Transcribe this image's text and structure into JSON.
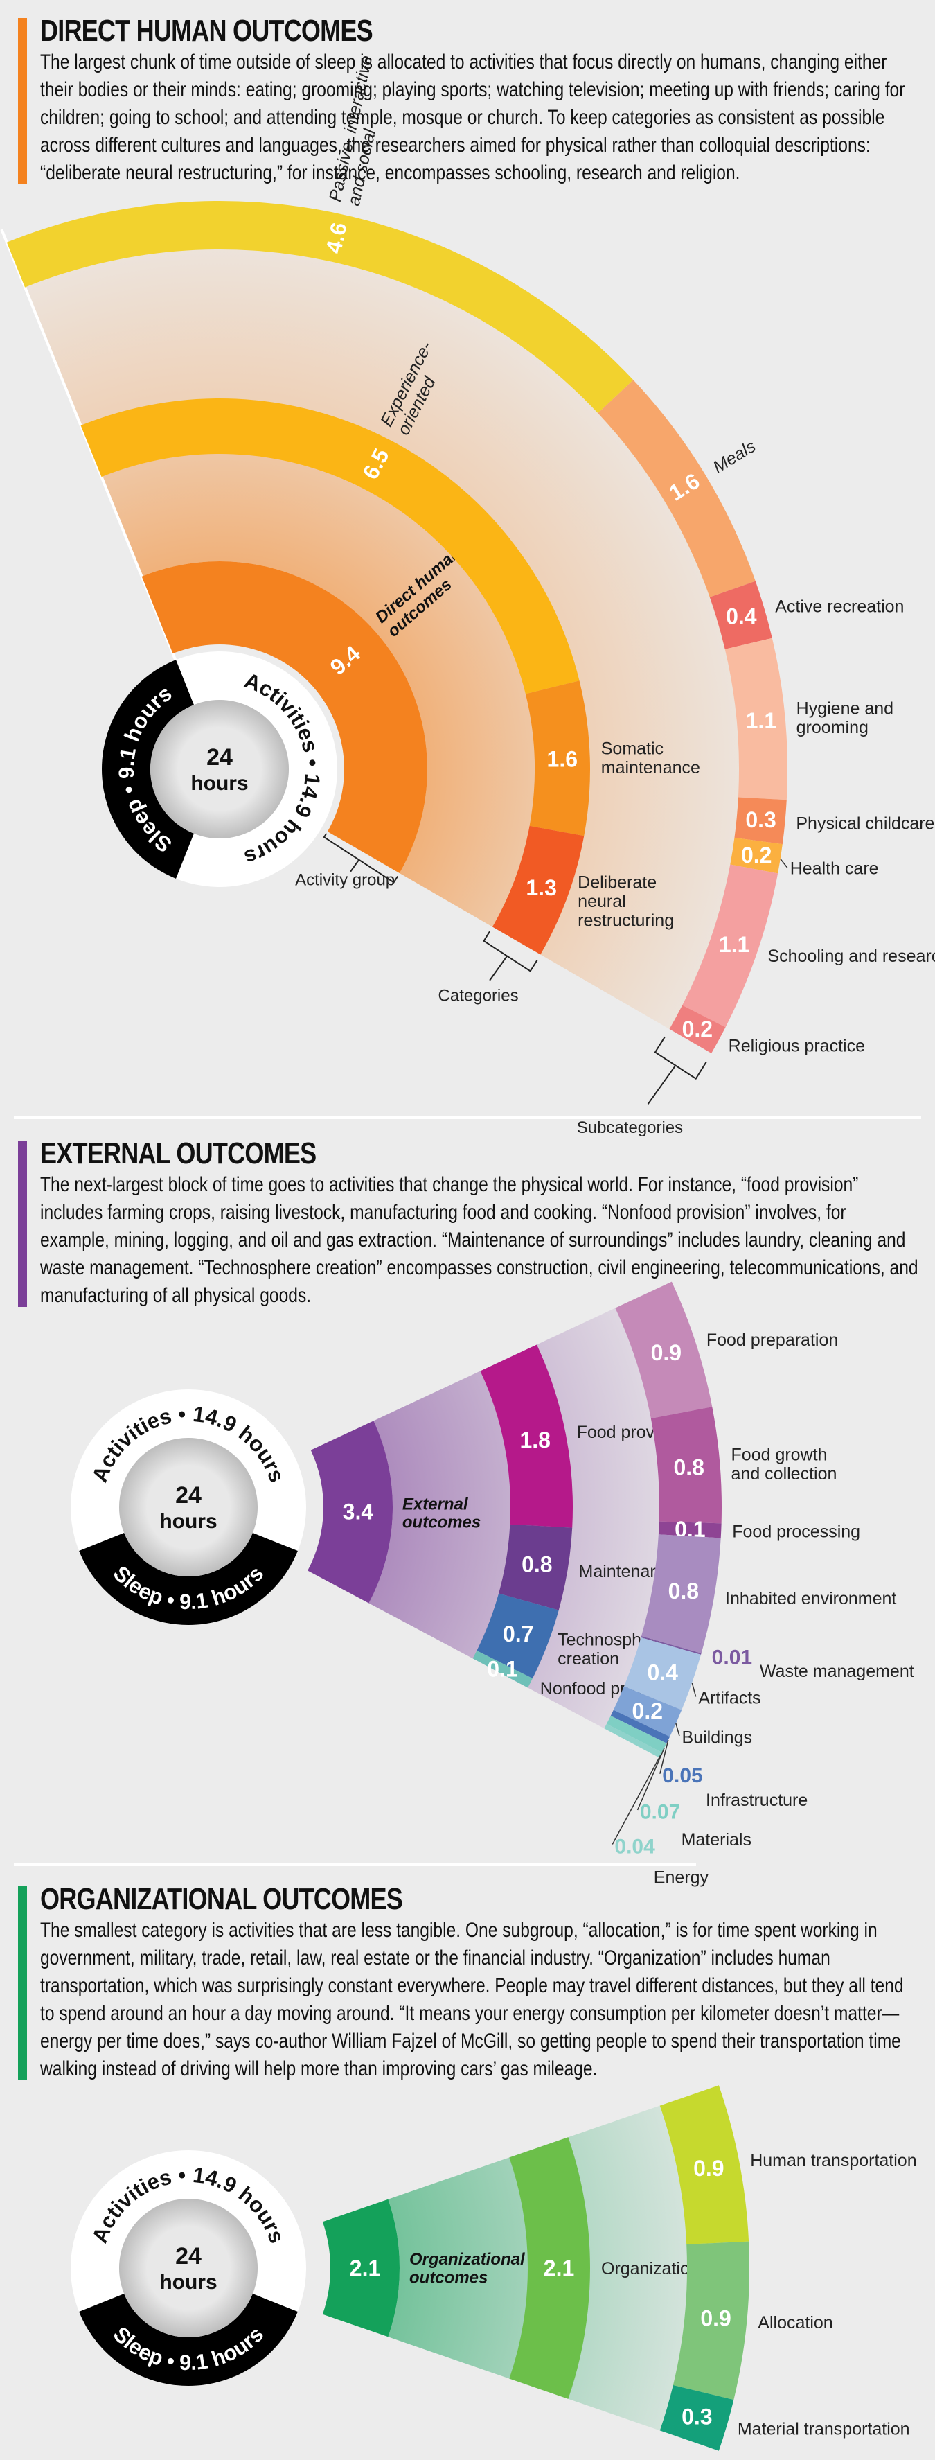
{
  "sections": [
    {
      "title": "DIRECT HUMAN OUTCOMES",
      "accent": "#f4821f",
      "body": "The largest chunk of time outside of sleep is allocated to activities that focus directly on humans, changing either their bodies or their minds: eating; grooming; playing sports; watching television; meeting up with friends; caring for children; going to school; and attending temple, mosque or church. To keep categories as consistent as possible across different cultures and languages, the researchers aimed for physical rather than colloquial descriptions: “deliberate neural restructuring,” for instance, encompasses schooling, research and religion."
    },
    {
      "title": "EXTERNAL OUTCOMES",
      "accent": "#7b3f98",
      "body": "The next-largest block of time goes to activities that change the physical world. For instance, “food provision” includes farming crops, raising livestock, manufacturing food and cooking. “Nonfood provision” involves, for example, mining, logging, and oil and gas extraction. “Maintenance of surroundings” includes laundry, cleaning and waste management. “Technosphere creation” encompasses construction, civil engineering, telecommunications, and manufacturing of all physical goods."
    },
    {
      "title": "ORGANIZATIONAL OUTCOMES",
      "accent": "#14a15a",
      "body": "The smallest category is activities that are less tangible. One subgroup, “allocation,” is for time spent working in government, military, trade, retail, law, real estate or the financial industry. “Organization” includes human transportation, which was surprisingly constant everywhere. People may travel different distances, but they all tend to spend around an hour a day moving around. “It means your energy consumption per kilometer doesn’t matter—energy per time does,” says co-author William Fajzel of McGill, so getting people to spend their transportation time walking instead of driving will help more than improving cars’ gas mileage."
    }
  ],
  "chart_data": [
    {
      "type": "sunburst",
      "center": {
        "number": "24",
        "unit": "hours"
      },
      "sleep": {
        "label": "Sleep • 9.1 hours",
        "value": 9.1,
        "color": "#000000"
      },
      "activities": {
        "label": "Activities • 14.9 hours",
        "value": 14.9,
        "color": "#ffffff"
      },
      "group": {
        "label": [
          "Direct human",
          "outcomes"
        ],
        "value": 9.4,
        "color": "#f4821f"
      },
      "categories": [
        {
          "label": [
            "Experience-",
            "oriented"
          ],
          "value": 6.5,
          "color": "#fbb515"
        },
        {
          "label": [
            "Somatic",
            "maintenance"
          ],
          "value": 1.6,
          "color": "#f5901e"
        },
        {
          "label": [
            "Deliberate",
            "neural",
            "restructuring"
          ],
          "value": 1.3,
          "color": "#f15a24"
        }
      ],
      "subcategories": [
        {
          "label": [
            "Passive, interactive",
            "and social"
          ],
          "value": 4.6,
          "color": "#f2d22e"
        },
        {
          "label": [
            "Meals"
          ],
          "value": 1.6,
          "color": "#f7a66b"
        },
        {
          "label": [
            "Active recreation"
          ],
          "value": 0.4,
          "color": "#ee6b63"
        },
        {
          "label": [
            "Hygiene and",
            "grooming"
          ],
          "value": 1.1,
          "color": "#f9bba0"
        },
        {
          "label": [
            "Physical childcare"
          ],
          "value": 0.3,
          "color": "#f58a58"
        },
        {
          "label": [
            "Health care"
          ],
          "value": 0.2,
          "color": "#fbb040"
        },
        {
          "label": [
            "Schooling and research"
          ],
          "value": 1.1,
          "color": "#f4a0a0"
        },
        {
          "label": [
            "Religious practice"
          ],
          "value": 0.2,
          "color": "#ef7f7f"
        }
      ],
      "annotations": [
        "Activity group",
        "Categories",
        "Subcategories"
      ]
    },
    {
      "type": "sunburst",
      "center": {
        "number": "24",
        "unit": "hours"
      },
      "sleep": {
        "label": "Sleep • 9.1 hours",
        "value": 9.1,
        "color": "#000000"
      },
      "activities": {
        "label": "Activities • 14.9 hours",
        "value": 14.9,
        "color": "#ffffff"
      },
      "group": {
        "label": [
          "External",
          "outcomes"
        ],
        "value": 3.4,
        "color": "#7b3f98"
      },
      "categories": [
        {
          "label": [
            "Food provision"
          ],
          "value": 1.8,
          "color": "#b5198a"
        },
        {
          "label": [
            "Maintenance"
          ],
          "value": 0.8,
          "color": "#6b3d8f"
        },
        {
          "label": [
            "Technosphere",
            "creation"
          ],
          "value": 0.7,
          "color": "#3e6fb0"
        },
        {
          "label": [
            "Nonfood provision"
          ],
          "value": 0.1,
          "color": "#6ec0b8"
        }
      ],
      "subcategories": [
        {
          "label": [
            "Food preparation"
          ],
          "value": 0.9,
          "color": "#c58ab8"
        },
        {
          "label": [
            "Food growth",
            "and collection"
          ],
          "value": 0.8,
          "color": "#b05a9e"
        },
        {
          "label": [
            "Food processing"
          ],
          "value": 0.1,
          "color": "#8e4494"
        },
        {
          "label": [
            "Inhabited environment"
          ],
          "value": 0.8,
          "color": "#a88cc0"
        },
        {
          "label": [
            "Waste management"
          ],
          "value": 0.01,
          "color": "#7b5aa0"
        },
        {
          "label": [
            "Artifacts"
          ],
          "value": 0.4,
          "color": "#a9c4e4"
        },
        {
          "label": [
            "Buildings"
          ],
          "value": 0.2,
          "color": "#7fa3d6"
        },
        {
          "label": [
            "Infrastructure"
          ],
          "value": 0.05,
          "color": "#4a74b8"
        },
        {
          "label": [
            "Materials"
          ],
          "value": 0.07,
          "color": "#7fcfc4"
        },
        {
          "label": [
            "Energy"
          ],
          "value": 0.04,
          "color": "#8fd3cb"
        }
      ]
    },
    {
      "type": "sunburst",
      "center": {
        "number": "24",
        "unit": "hours"
      },
      "sleep": {
        "label": "Sleep • 9.1 hours",
        "value": 9.1,
        "color": "#000000"
      },
      "activities": {
        "label": "Activities • 14.9 hours",
        "value": 14.9,
        "color": "#ffffff"
      },
      "group": {
        "label": [
          "Organizational",
          "outcomes"
        ],
        "value": 2.1,
        "color": "#14a15a"
      },
      "categories": [
        {
          "label": [
            "Organization"
          ],
          "value": 2.1,
          "color": "#6cbf4a"
        }
      ],
      "subcategories": [
        {
          "label": [
            "Human transportation"
          ],
          "value": 0.9,
          "color": "#c6d92e"
        },
        {
          "label": [
            "Allocation"
          ],
          "value": 0.9,
          "color": "#7fc57a"
        },
        {
          "label": [
            "Material transportation"
          ],
          "value": 0.3,
          "color": "#14a07a"
        }
      ]
    }
  ]
}
